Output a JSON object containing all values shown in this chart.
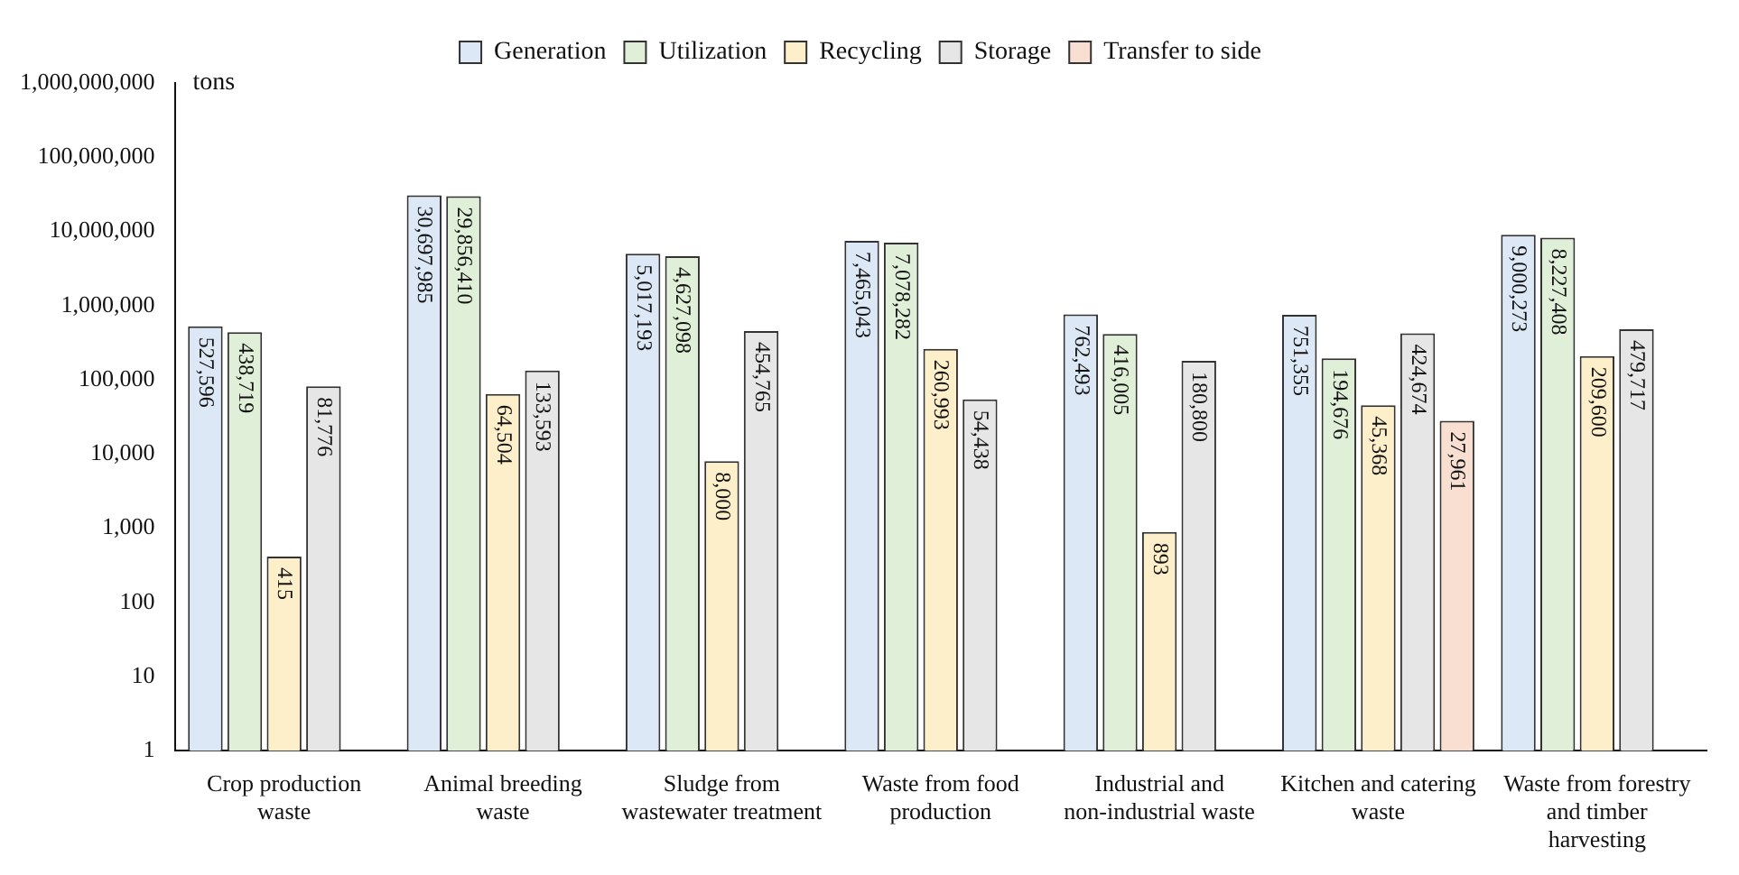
{
  "chart_data": {
    "type": "bar",
    "ylabel": "tons",
    "categories": [
      "Crop production waste",
      "Animal breeding waste",
      "Sludge from wastewater treatment",
      "Waste from food production",
      "Industrial and non-industrial waste",
      "Kitchen and catering waste",
      "Waste from forestry and timber harvesting"
    ],
    "series": [
      {
        "name": "Generation",
        "color": "#dce8f6",
        "values": [
          527596,
          30697985,
          5017193,
          7465043,
          762493,
          751355,
          9000273
        ],
        "value_labels": [
          "527,596",
          "30,697,985",
          "5,017,193",
          "7,465,043",
          "762,493",
          "751,355",
          "9,000,273"
        ]
      },
      {
        "name": "Utilization",
        "color": "#e0efd8",
        "values": [
          438719,
          29856410,
          4627098,
          7078282,
          416005,
          194676,
          8227408
        ],
        "value_labels": [
          "438,719",
          "29,856,410",
          "4,627,098",
          "7,078,282",
          "416,005",
          "194,676",
          "8,227,408"
        ]
      },
      {
        "name": "Recycling",
        "color": "#fdefc9",
        "values": [
          415,
          64504,
          8000,
          260993,
          893,
          45368,
          209600
        ],
        "value_labels": [
          "415",
          "64,504",
          "8,000",
          "260,993",
          "893",
          "45,368",
          "209,600"
        ]
      },
      {
        "name": "Storage",
        "color": "#e6e6e6",
        "values": [
          81776,
          133593,
          454765,
          54438,
          180800,
          424674,
          479717
        ],
        "value_labels": [
          "81,776",
          "133,593",
          "454,765",
          "54,438",
          "180,800",
          "424,674",
          "479,717"
        ]
      },
      {
        "name": "Transfer to side",
        "color": "#f9dfd2",
        "values": [
          null,
          null,
          null,
          null,
          null,
          27961,
          null
        ],
        "value_labels": [
          null,
          null,
          null,
          null,
          null,
          "27,961",
          null
        ]
      }
    ],
    "log": true,
    "ylim": [
      1,
      1000000000
    ],
    "yticks": [
      1,
      10,
      100,
      {
        "value": 1000,
        "label": "1,000"
      },
      {
        "value": 10000,
        "label": "10,000"
      },
      {
        "value": 100000,
        "label": "100,000"
      },
      {
        "value": 1000000,
        "label": "1,000,000"
      },
      {
        "value": 10000000,
        "label": "10,000,000"
      },
      {
        "value": 100000000,
        "label": "100,000,000"
      },
      {
        "value": 1000000000,
        "label": "1,000,000,000"
      }
    ],
    "grid": false,
    "legend": "top"
  }
}
